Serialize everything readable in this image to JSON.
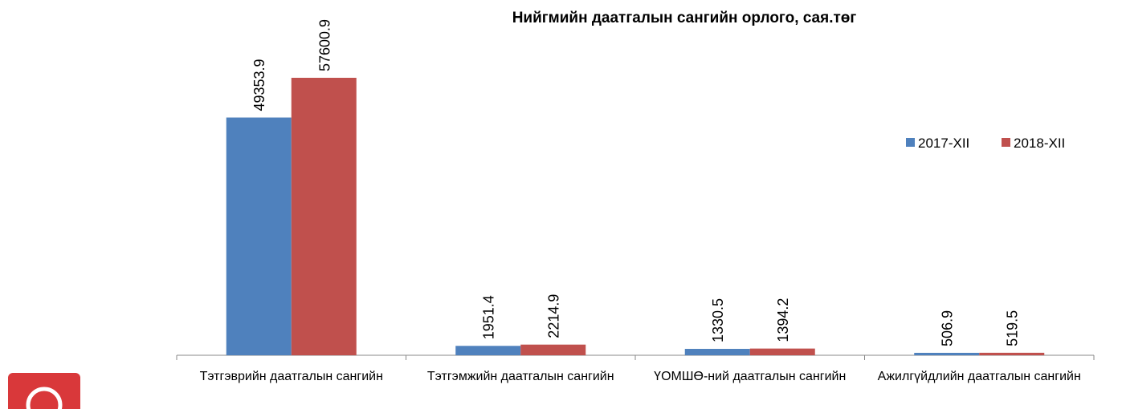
{
  "chart_data": {
    "type": "bar",
    "title": "Нийгмийн даатгалын сангийн орлого, сая.төг",
    "categories": [
      "Тэтгэврийн даатгалын сангийн",
      "Тэтгэмжийн даатгалын сангийн",
      "ҮОМШӨ-ний даатгалын сангийн",
      "Ажилгүйдлийн даатгалын сангийн"
    ],
    "series": [
      {
        "name": "2017-XII",
        "color": "#4f81bd",
        "values": [
          49353.9,
          1951.4,
          1330.5,
          506.9
        ]
      },
      {
        "name": "2018-XII",
        "color": "#c0504d",
        "values": [
          57600.9,
          2214.9,
          1394.2,
          519.5
        ]
      }
    ],
    "legend": "right"
  }
}
